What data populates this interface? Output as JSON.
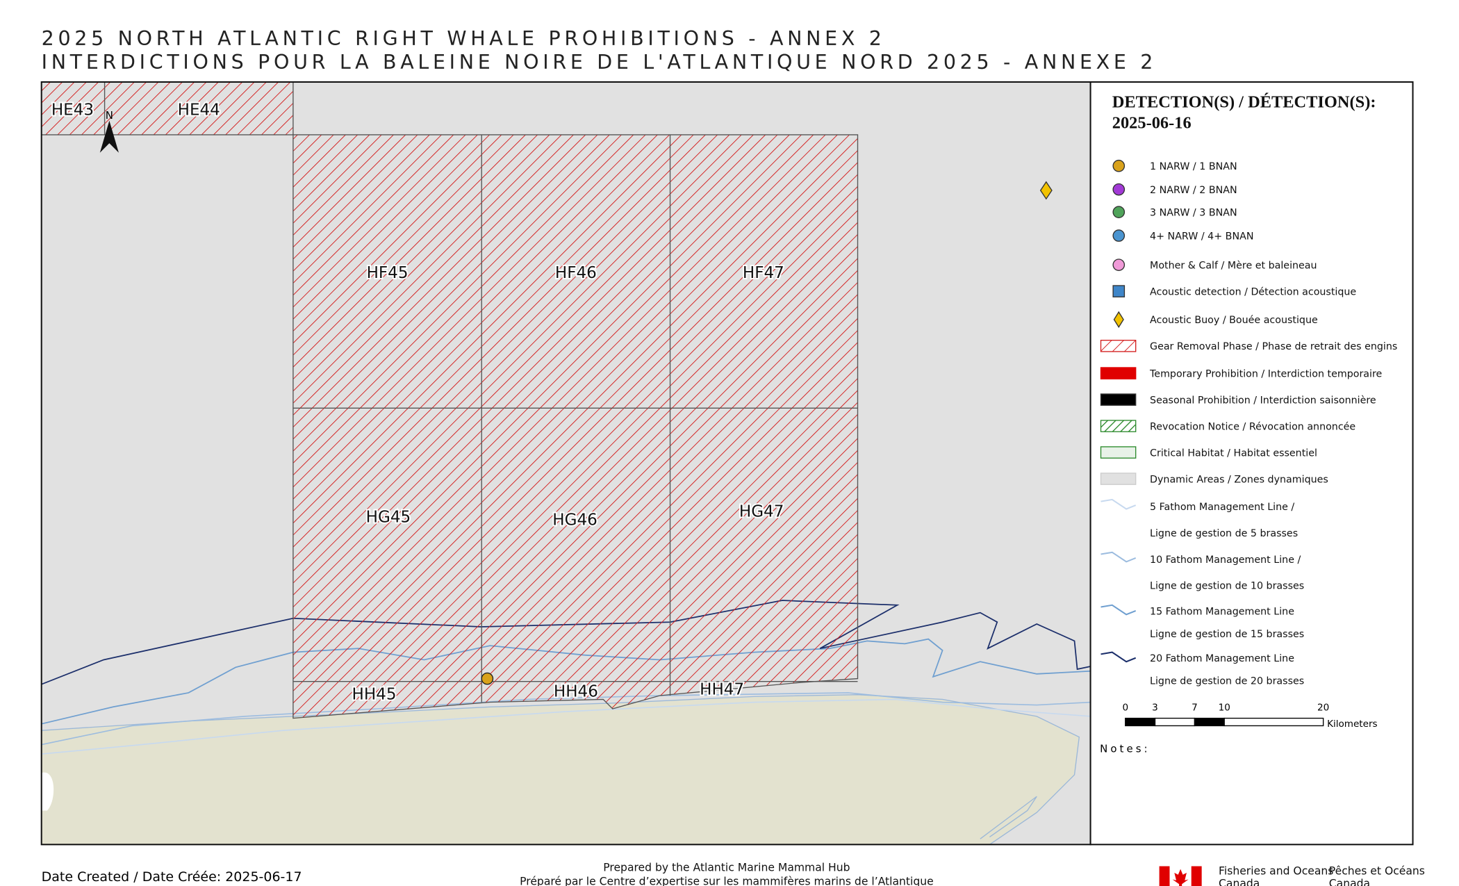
{
  "header": {
    "title_en": "2025 NORTH ATLANTIC RIGHT WHALE PROHIBITIONS - ANNEX 2",
    "title_fr": "INTERDICTIONS POUR LA BALEINE NOIRE DE L'ATLANTIQUE NORD 2025 - ANNEXE 2"
  },
  "map": {
    "grid_labels": [
      "HE43",
      "HE44",
      "HF45",
      "HF46",
      "HF47",
      "HG45",
      "HG46",
      "HG47",
      "HH45",
      "HH46",
      "HH47"
    ],
    "north_label": "N"
  },
  "legend": {
    "title": "DETECTION(S) / DÉTECTION(S):",
    "date": "2025-06-16",
    "items": [
      "1 NARW / 1 BNAN",
      "2 NARW / 2 BNAN",
      "3 NARW / 3 BNAN",
      "4+ NARW / 4+ BNAN",
      "Mother & Calf / Mère et baleineau",
      "Acoustic detection / Détection acoustique",
      "Acoustic Buoy / Bouée acoustique",
      "Gear Removal Phase / Phase de retrait des engins",
      "Temporary Prohibition / Interdiction temporaire",
      "Seasonal Prohibition / Interdiction saisonnière",
      "Revocation Notice / Révocation annoncée",
      "Critical Habitat / Habitat essentiel",
      "Dynamic Areas / Zones dynamiques",
      "5 Fathom Management Line /",
      "Ligne de gestion de 5 brasses",
      "10 Fathom Management Line /",
      "Ligne de gestion de 10 brasses",
      "15 Fathom Management Line",
      "Ligne de gestion de 15 brasses",
      "20 Fathom Management Line",
      "Ligne de gestion de 20 brasses"
    ]
  },
  "scale_bar": {
    "ticks": [
      0,
      3,
      7,
      10,
      20
    ],
    "unit": "Kilometers"
  },
  "notes": "Notes:",
  "footer": {
    "date_created": "Date Created / Date Créée: 2025-06-17",
    "prepared_en": "Prepared by the Atlantic Marine Mammal Hub",
    "prepared_fr": "Préparé par le Centre d’expertise sur les mammifères marins de l’Atlantique",
    "dfo_en": [
      "Fisheries and Oceans",
      "Canada"
    ],
    "dfo_fr": [
      "Pêches et Océans",
      "Canada"
    ]
  }
}
